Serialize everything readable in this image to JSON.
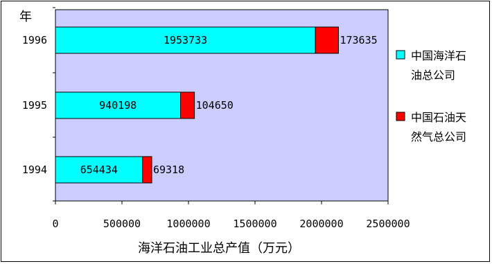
{
  "chart_data": {
    "type": "bar",
    "stacked": true,
    "orientation": "horizontal",
    "title": "",
    "y_axis_header": "年",
    "xlabel": "海洋石油工业总产值（万元）",
    "ylabel": "",
    "categories": [
      "1996",
      "1995",
      "1994"
    ],
    "series": [
      {
        "name": "中国海洋石油总公司",
        "color": "#00ffff",
        "values": [
          1953733,
          940198,
          654434
        ]
      },
      {
        "name": "中国石油天然气总公司",
        "color": "#ff0000",
        "values": [
          173635,
          104650,
          69318
        ]
      }
    ],
    "xlim": [
      0,
      2500000
    ],
    "xticks": [
      "0",
      "500000",
      "1000000",
      "1500000",
      "2000000",
      "2500000"
    ],
    "legend_position": "right",
    "plot_background": "#ccccff",
    "grid": false
  }
}
